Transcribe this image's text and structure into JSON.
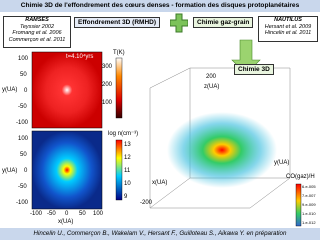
{
  "header": {
    "title": "Chimie 3D de l'effondrement des cœurs denses - formation des disques protoplanétaires"
  },
  "ramses": {
    "name": "RAMSES",
    "refs": [
      "Teyssier 2002",
      "Fromang et al. 2006",
      "Commerçon et al. 2011"
    ]
  },
  "labels": {
    "collapse": "Effondrement 3D (RMHD)",
    "chemistry": "Chimie gaz-grain",
    "chem3d": "Chimie 3D"
  },
  "nautilus": {
    "name": "NAUTILUS",
    "refs": [
      "Hersant et al. 2009",
      "Hincelin et al. 2011"
    ]
  },
  "maps": {
    "time": "t=4.10⁴yrs",
    "temp_label": "T(K)",
    "temp_ticks": [
      "300",
      "200",
      "100"
    ],
    "dens_label": "log n(cm⁻³)",
    "dens_ticks": [
      "13",
      "12",
      "11",
      "10",
      "9"
    ],
    "y_label": "y(UA)",
    "y_ticks": [
      "100",
      "50",
      "0",
      "-50",
      "-100"
    ],
    "x_label": "x(UA)",
    "x_ticks": [
      "-100",
      "-50",
      "0",
      "50",
      "100"
    ]
  },
  "cube": {
    "z_label": "z(UA)",
    "x_label": "x(UA)",
    "y_label": "y(UA)",
    "ticks": [
      "200",
      "-200"
    ],
    "co_label": "CO(gaz)/H",
    "co_ticks": [
      "6.e-005",
      "7.e-007",
      "9.e-009",
      "1.e-010",
      "1.e-012"
    ]
  },
  "footer": {
    "authors": "Hincelin U., Commerçon B., Wakelam V., Hersant F., Guilloteau S., Aikawa Y. en préparation"
  }
}
